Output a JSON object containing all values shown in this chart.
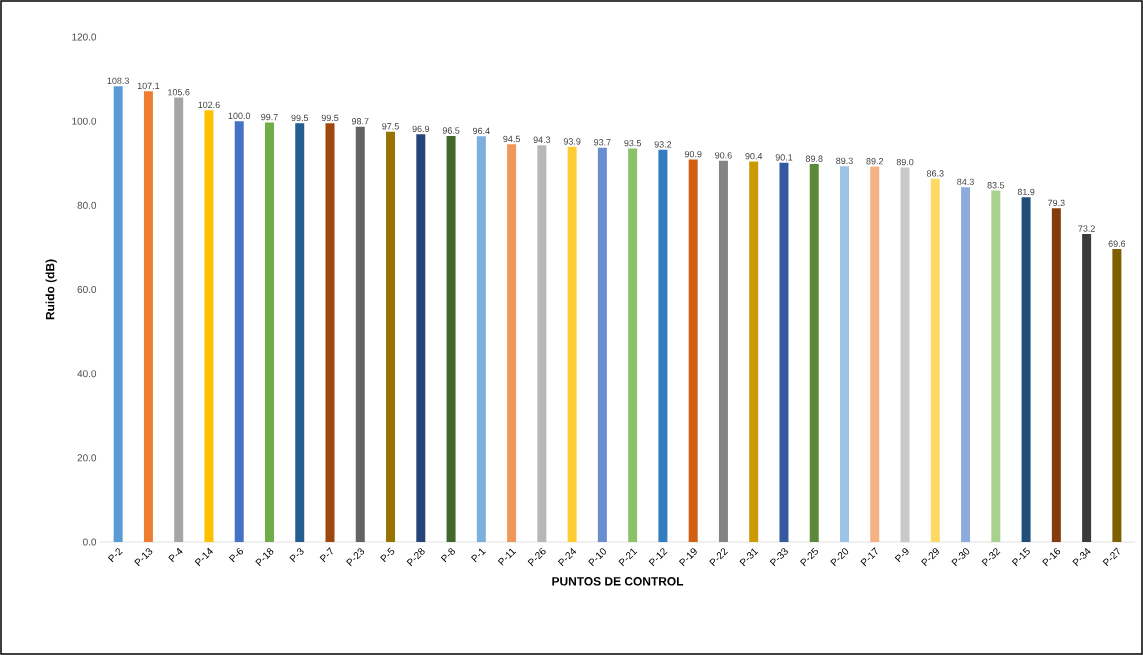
{
  "chart_data": {
    "type": "bar",
    "xlabel": "PUNTOS DE CONTROL",
    "ylabel": "Ruido (dB)",
    "categories": [
      "P-2",
      "P-13",
      "P-4",
      "P-14",
      "P-6",
      "P-18",
      "P-3",
      "P-7",
      "P-23",
      "P-5",
      "P-28",
      "P-8",
      "P-1",
      "P-11",
      "P-26",
      "P-24",
      "P-10",
      "P-21",
      "P-12",
      "P-19",
      "P-22",
      "P-31",
      "P-33",
      "P-25",
      "P-20",
      "P-17",
      "P-9",
      "P-29",
      "P-30",
      "P-32",
      "P-15",
      "P-16",
      "P-34",
      "P-27"
    ],
    "values": [
      108.3,
      107.1,
      105.6,
      102.6,
      100.0,
      99.7,
      99.5,
      99.5,
      98.7,
      97.5,
      96.9,
      96.5,
      96.4,
      94.5,
      94.3,
      93.9,
      93.7,
      93.5,
      93.2,
      90.9,
      90.6,
      90.4,
      90.1,
      89.8,
      89.3,
      89.2,
      89.0,
      86.3,
      84.3,
      83.5,
      81.9,
      79.3,
      73.2,
      69.6
    ],
    "value_labels": [
      "108.3",
      "107.1",
      "105.6",
      "102.6",
      "100.0",
      "99.7",
      "99.5",
      "99.5",
      "98.7",
      "97.5",
      "96.9",
      "96.5",
      "96.4",
      "94.5",
      "94.3",
      "93.9",
      "93.7",
      "93.5",
      "93.2",
      "90.9",
      "90.6",
      "90.4",
      "90.1",
      "89.8",
      "89.3",
      "89.2",
      "89.0",
      "86.3",
      "84.3",
      "83.5",
      "81.9",
      "79.3",
      "73.2",
      "69.6"
    ],
    "colors": [
      "#5b9bd5",
      "#ed7d31",
      "#a5a5a5",
      "#ffc000",
      "#4472c4",
      "#70ad47",
      "#255e91",
      "#9e480e",
      "#636363",
      "#997300",
      "#264478",
      "#43682b",
      "#7cafdd",
      "#f1975a",
      "#b7b7b7",
      "#ffcd33",
      "#698ed0",
      "#8cc168",
      "#327dc2",
      "#d26012",
      "#848484",
      "#cc9a00",
      "#335aa1",
      "#5a8a39",
      "#9dc3e6",
      "#f4b183",
      "#c9c9c9",
      "#ffd966",
      "#8faadc",
      "#a9d18e",
      "#1f4e79",
      "#843c0c",
      "#3b3b3b",
      "#7f6000"
    ],
    "ylim": [
      0,
      120
    ],
    "yticks": [
      {
        "value": 0,
        "label": "0.0"
      },
      {
        "value": 20,
        "label": "20.0"
      },
      {
        "value": 40,
        "label": "40.0"
      },
      {
        "value": 60,
        "label": "60.0"
      },
      {
        "value": 80,
        "label": "80.0"
      },
      {
        "value": 100,
        "label": "100.0"
      },
      {
        "value": 120,
        "label": "120.0"
      }
    ],
    "grid": false
  }
}
